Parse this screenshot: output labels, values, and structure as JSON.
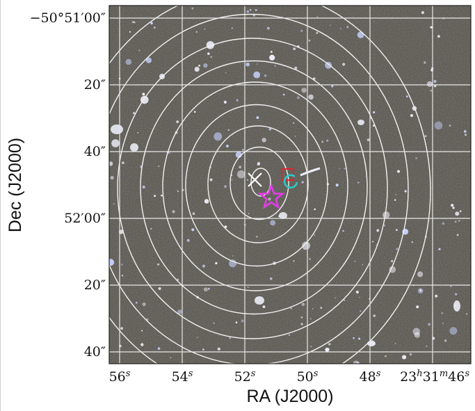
{
  "figure": {
    "xlabel": "RA (J2000)",
    "ylabel": "Dec (J2000)",
    "ra_ticks": [
      {
        "sup": "s",
        "pre": "56"
      },
      {
        "sup": "s",
        "pre": "54"
      },
      {
        "sup": "s",
        "pre": "52"
      },
      {
        "sup": "s",
        "pre": "50"
      },
      {
        "sup": "s",
        "pre": "48"
      }
    ],
    "ra_last": {
      "h": "23",
      "m": "31",
      "s": "46"
    },
    "dec_ticks": [
      "−50°51′00″",
      "20″",
      "40″",
      "52′00″",
      "20″",
      "40″"
    ],
    "colors": {
      "grid": "#e8e8e8",
      "contour": "#f2f2f2",
      "cross": "#ffffff",
      "square": "#e0242b",
      "circle": "#2ec8c8",
      "star": "#e23de6",
      "sky": "#5a5236"
    },
    "markers": [
      "white-cross",
      "red-square",
      "cyan-circle",
      "magenta-star"
    ]
  }
}
